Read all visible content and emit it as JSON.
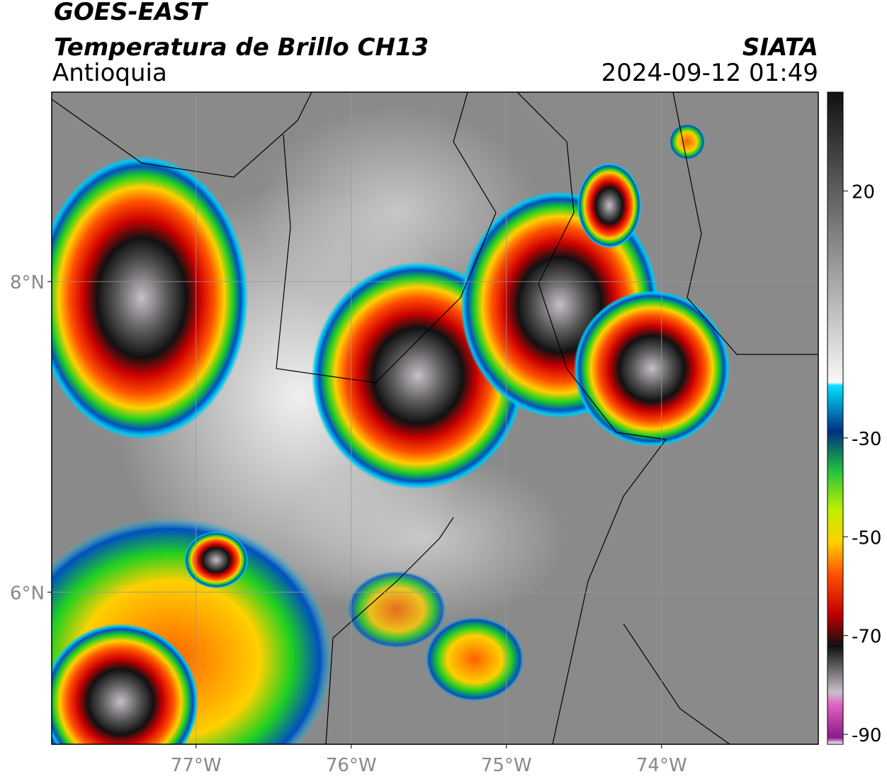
{
  "header": {
    "title": "GOES-EAST",
    "subtitle": "Temperatura de Brillo CH13",
    "region": "Antioquia",
    "source": "SIATA",
    "datetime": "2024-09-12 01:49"
  },
  "map": {
    "xlim": [
      -77.93,
      -72.99
    ],
    "ylim": [
      5.02,
      9.22
    ],
    "xticks": [
      {
        "value": -77,
        "label": "77°W"
      },
      {
        "value": -76,
        "label": "76°W"
      },
      {
        "value": -75,
        "label": "75°W"
      },
      {
        "value": -74,
        "label": "74°W"
      }
    ],
    "yticks": [
      {
        "value": 8,
        "label": "8°N"
      },
      {
        "value": 6,
        "label": "6°N"
      }
    ],
    "grid": true
  },
  "colorbar": {
    "lim": [
      -92,
      40
    ],
    "ticks": [
      20,
      -30,
      -50,
      -70,
      -90
    ]
  }
}
